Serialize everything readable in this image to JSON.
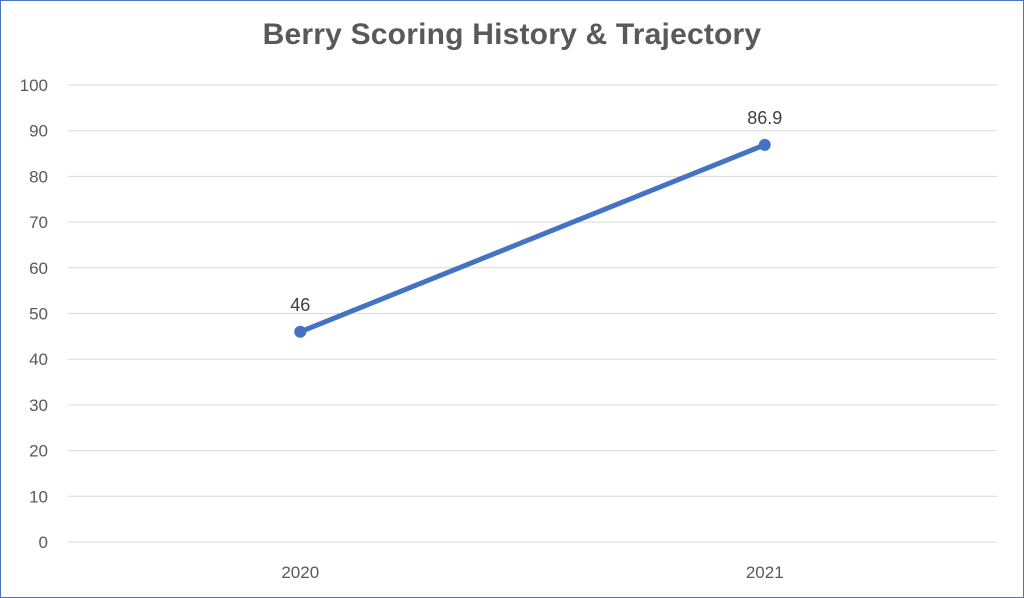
{
  "chart_data": {
    "type": "line",
    "title": "Berry Scoring History & Trajectory",
    "xlabel": "",
    "ylabel": "",
    "categories": [
      "2020",
      "2021"
    ],
    "series": [
      {
        "values": [
          46,
          86.9
        ],
        "data_labels": [
          "46",
          "86.9"
        ],
        "color": "#4472c4"
      }
    ],
    "ylim": [
      0,
      100
    ],
    "yticks": [
      0,
      10,
      20,
      30,
      40,
      50,
      60,
      70,
      80,
      90,
      100
    ],
    "grid": true,
    "legend": "none"
  },
  "colors": {
    "frame": "#4a72c4",
    "gridline": "#d9d9d9",
    "axis_text": "#595959"
  }
}
